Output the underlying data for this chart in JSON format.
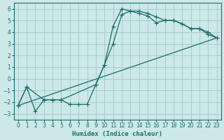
{
  "background_color": "#cce8e8",
  "grid_color": "#aacccc",
  "line_color": "#1a6b6b",
  "xlabel": "Humidex (Indice chaleur)",
  "xlim": [
    -0.5,
    23.5
  ],
  "ylim": [
    -3.5,
    6.5
  ],
  "yticks": [
    -3,
    -2,
    -1,
    0,
    1,
    2,
    3,
    4,
    5,
    6
  ],
  "xticks": [
    0,
    1,
    2,
    3,
    4,
    5,
    6,
    7,
    8,
    9,
    10,
    11,
    12,
    13,
    14,
    15,
    16,
    17,
    18,
    19,
    20,
    21,
    22,
    23
  ],
  "curve1_x": [
    0,
    1,
    2,
    3,
    4,
    5,
    6,
    7,
    8,
    9,
    10,
    11,
    12,
    13,
    14,
    15,
    16,
    17,
    18,
    19,
    20,
    21,
    22,
    23
  ],
  "curve1_y": [
    -2.3,
    -0.7,
    -2.8,
    -1.8,
    -1.8,
    -1.8,
    -2.2,
    -2.2,
    -2.2,
    -0.5,
    1.2,
    4.5,
    6.0,
    5.8,
    5.8,
    5.6,
    5.3,
    5.0,
    5.0,
    4.7,
    4.3,
    4.3,
    4.0,
    3.5
  ],
  "curve2_x": [
    0,
    1,
    3,
    4,
    5,
    9,
    10,
    11,
    12,
    13,
    14,
    15,
    16,
    17,
    18,
    19,
    20,
    21,
    22,
    23
  ],
  "curve2_y": [
    -2.3,
    -0.7,
    -1.8,
    -1.8,
    -1.8,
    -0.5,
    1.2,
    3.0,
    5.5,
    5.8,
    5.6,
    5.4,
    4.8,
    5.0,
    5.0,
    4.7,
    4.3,
    4.3,
    3.8,
    3.5
  ],
  "line_x": [
    0,
    23
  ],
  "line_y": [
    -2.3,
    3.5
  ]
}
